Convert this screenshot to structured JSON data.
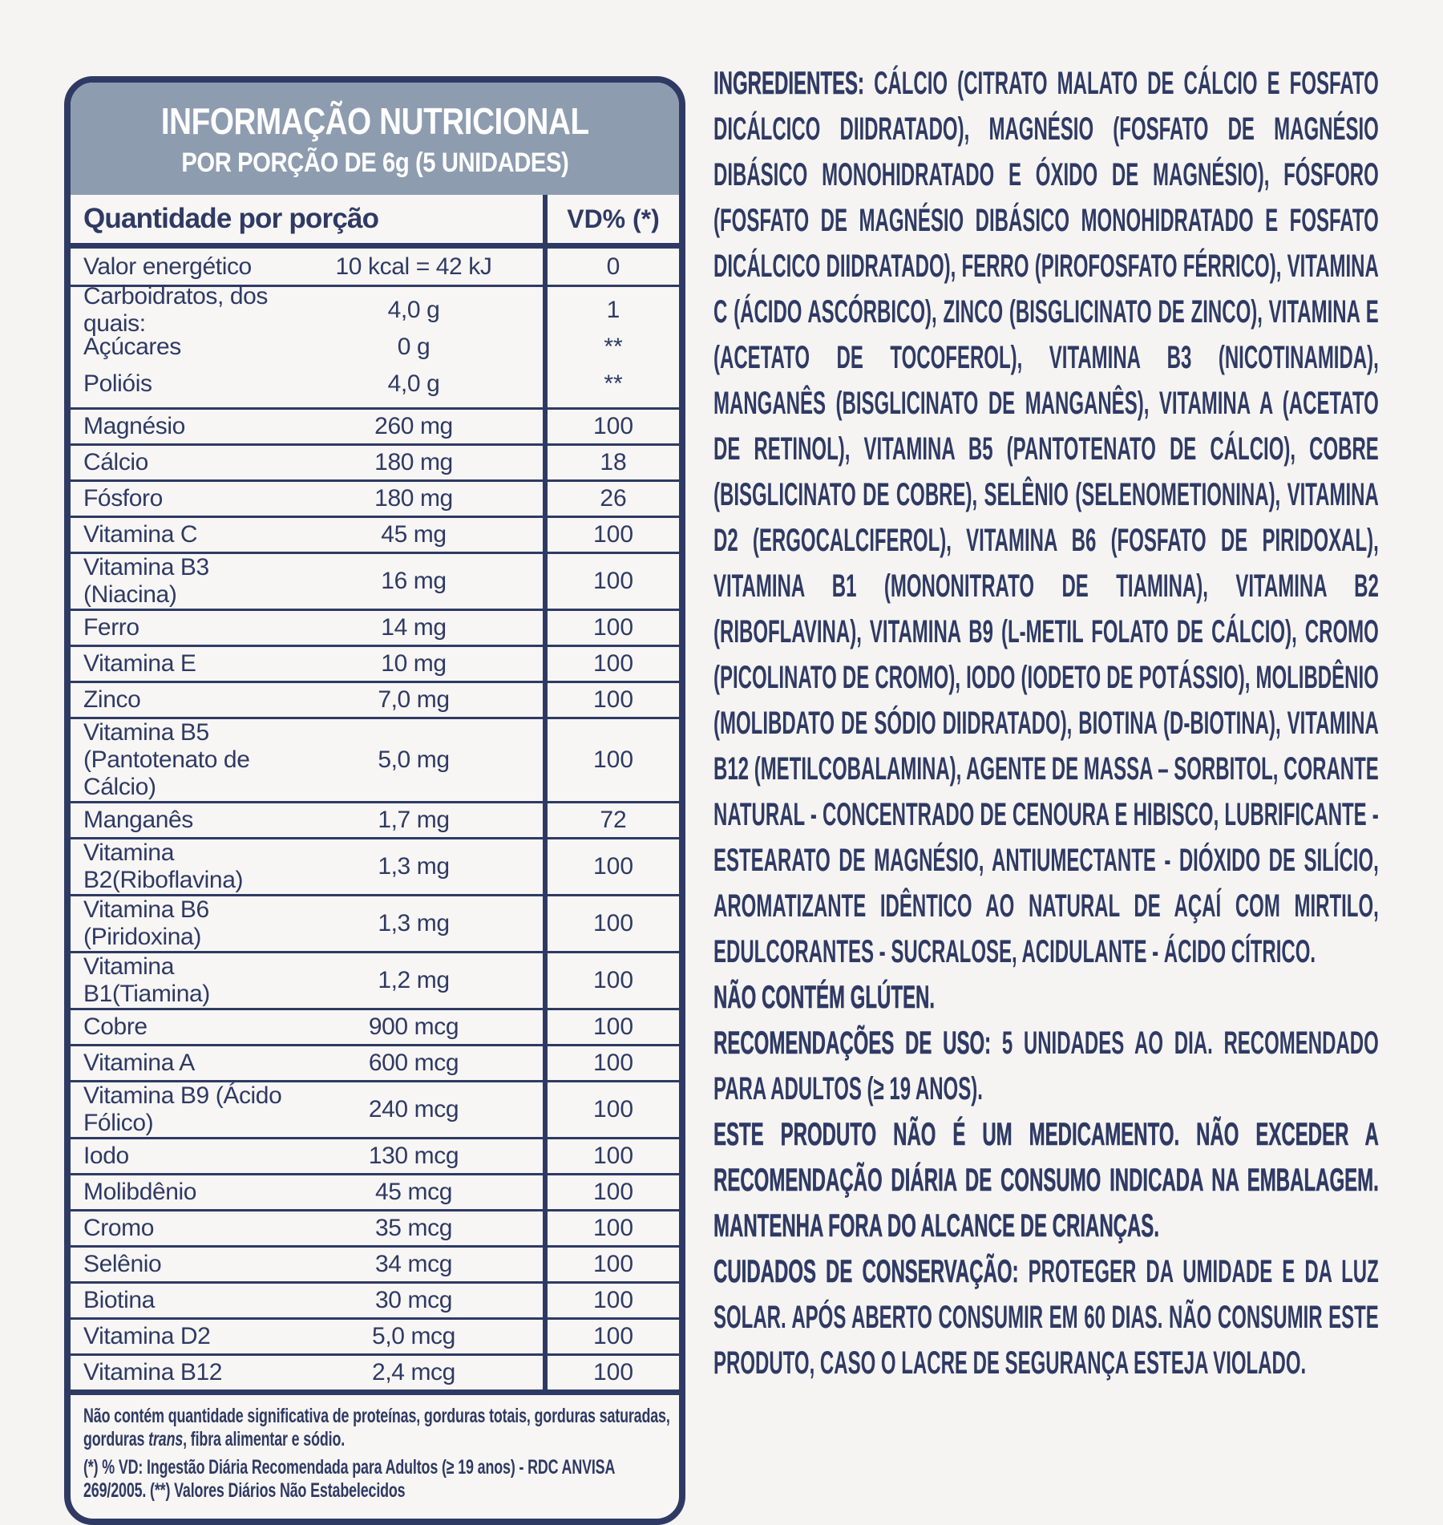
{
  "colors": {
    "navy": "#2f3a64",
    "header_band": "#8e9cb0",
    "background": "#f5f4f2",
    "title_text": "#ffffff"
  },
  "table": {
    "title": "INFORMAÇÃO NUTRICIONAL",
    "subtitle": "POR PORÇÃO DE 6g (5 UNIDADES)",
    "col1_header": "Quantidade por porção",
    "col2_header": "VD% (*)",
    "energy_row": {
      "label": "Valor energético",
      "amount": "10 kcal = 42 kJ",
      "vd": "0"
    },
    "carb_group": [
      {
        "label": "Carboidratos, dos quais:",
        "amount": "4,0 g",
        "vd": "1"
      },
      {
        "label": "Açúcares",
        "amount": "0 g",
        "vd": "**"
      },
      {
        "label": "Polióis",
        "amount": "4,0 g",
        "vd": "**"
      }
    ],
    "rows": [
      {
        "label": "Magnésio",
        "amount": "260 mg",
        "vd": "100"
      },
      {
        "label": "Cálcio",
        "amount": "180 mg",
        "vd": "18"
      },
      {
        "label": "Fósforo",
        "amount": "180 mg",
        "vd": "26"
      },
      {
        "label": "Vitamina C",
        "amount": "45 mg",
        "vd": "100"
      },
      {
        "label": "Vitamina B3 (Niacina)",
        "amount": "16 mg",
        "vd": "100"
      },
      {
        "label": "Ferro",
        "amount": "14 mg",
        "vd": "100"
      },
      {
        "label": "Vitamina E",
        "amount": "10 mg",
        "vd": "100"
      },
      {
        "label": "Zinco",
        "amount": "7,0 mg",
        "vd": "100"
      },
      {
        "label": "Vitamina B5 (Pantotenato de Cálcio)",
        "amount": "5,0 mg",
        "vd": "100"
      },
      {
        "label": "Manganês",
        "amount": "1,7 mg",
        "vd": "72"
      },
      {
        "label": "Vitamina B2(Riboflavina)",
        "amount": "1,3 mg",
        "vd": "100"
      },
      {
        "label": "Vitamina B6 (Piridoxina)",
        "amount": "1,3 mg",
        "vd": "100"
      },
      {
        "label": "Vitamina B1(Tiamina)",
        "amount": "1,2 mg",
        "vd": "100"
      },
      {
        "label": "Cobre",
        "amount": "900 mcg",
        "vd": "100"
      },
      {
        "label": "Vitamina A",
        "amount": "600 mcg",
        "vd": "100"
      },
      {
        "label": "Vitamina B9 (Ácido Fólico)",
        "amount": "240 mcg",
        "vd": "100"
      },
      {
        "label": "Iodo",
        "amount": "130 mcg",
        "vd": "100"
      },
      {
        "label": "Molibdênio",
        "amount": "45 mcg",
        "vd": "100"
      },
      {
        "label": "Cromo",
        "amount": "35 mcg",
        "vd": "100"
      },
      {
        "label": "Selênio",
        "amount": "34 mcg",
        "vd": "100"
      },
      {
        "label": "Biotina",
        "amount": "30 mcg",
        "vd": "100"
      },
      {
        "label": "Vitamina D2",
        "amount": "5,0 mcg",
        "vd": "100"
      },
      {
        "label": "Vitamina B12",
        "amount": "2,4 mcg",
        "vd": "100"
      }
    ],
    "footnote1": {
      "pre": "Não contém quantidade significativa de proteínas, gorduras totais, gorduras saturadas, gorduras ",
      "italic": "trans",
      "post": ", fibra alimentar e sódio."
    },
    "footnote2": "(*) % VD: Ingestão Diária Recomendada para Adultos (≥ 19 anos) - RDC ANVISA 269/2005. (**) Valores Diários Não Estabelecidos"
  },
  "paragraphs": [
    {
      "lead": "INGREDIENTES:",
      "body": " CÁLCIO (CITRATO MALATO DE CÁLCIO E FOSFATO DICÁLCICO DIIDRATADO), MAGNÉSIO (FOSFATO DE MAGNÉSIO DIBÁSICO MONOHIDRATADO E ÓXIDO DE MAGNÉSIO), FÓSFORO (FOSFATO DE MAGNÉSIO DIBÁSICO MONOHIDRATADO E FOSFATO DICÁLCICO DIIDRATADO), FERRO (PIROFOSFATO FÉRRICO), VITAMINA C (ÁCIDO ASCÓRBICO), ZINCO (BISGLICINATO DE ZINCO), VITAMINA E (ACETATO DE TOCOFEROL), VITAMINA B3 (NICOTINAMIDA), MANGANÊS (BISGLICINATO DE MANGANÊS), VITAMINA A (ACETATO DE RETINOL), VITAMINA B5 (PANTOTENATO DE CÁLCIO), COBRE (BISGLICINATO DE COBRE), SELÊNIO (SELENOMETIONINA), VITAMINA D2 (ERGOCALCIFEROL), VITAMINA B6 (FOSFATO DE PIRIDOXAL), VITAMINA B1 (MONONITRATO DE TIAMINA), VITAMINA B2 (RIBOFLAVINA), VITAMINA B9 (L-METIL FOLATO DE CÁLCIO), CROMO (PICOLINATO DE CROMO), IODO (IODETO DE POTÁSSIO), MOLIBDÊNIO (MOLIBDATO DE SÓDIO DIIDRATADO), BIOTINA (D-BIOTINA), VITAMINA B12 (METILCOBALAMINA), AGENTE DE MASSA – SORBITOL, CORANTE NATURAL - CONCENTRADO DE CENOURA E HIBISCO, LUBRIFICANTE - ESTEARATO DE MAGNÉSIO, ANTIUMECTANTE - DIÓXIDO DE SILÍCIO, AROMATIZANTE IDÊNTICO AO NATURAL DE AÇAÍ COM MIRTILO, EDULCORANTES - SUCRALOSE, ACIDULANTE - ÁCIDO CÍTRICO."
    },
    {
      "lead": "NÃO CONTÉM GLÚTEN.",
      "body": ""
    },
    {
      "lead": "RECOMENDAÇÕES DE USO:",
      "body": " 5 UNIDADES AO DIA. RECOMENDADO PARA ADULTOS (≥ 19 ANOS)."
    },
    {
      "lead": "ESTE PRODUTO NÃO É UM MEDICAMENTO. NÃO EXCEDER A RECOMENDAÇÃO DIÁRIA DE CONSUMO INDICADA NA EMBALAGEM. MANTENHA FORA DO ALCANCE DE CRIANÇAS.",
      "body": ""
    },
    {
      "lead": "CUIDADOS DE CONSERVAÇÃO:",
      "body": " PROTEGER DA UMIDADE E DA LUZ SOLAR. APÓS ABERTO CONSUMIR EM 60 DIAS. NÃO CONSUMIR ESTE PRODUTO, CASO O LACRE DE SEGURANÇA ESTEJA VIOLADO."
    }
  ]
}
